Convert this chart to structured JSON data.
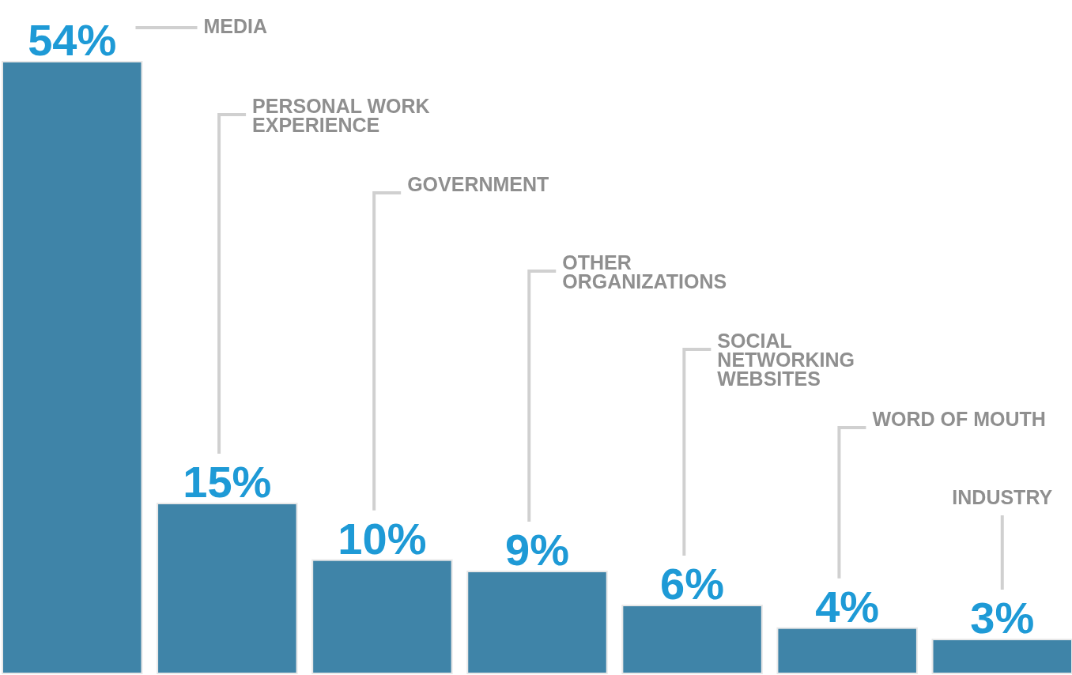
{
  "chart_data": {
    "type": "bar",
    "categories": [
      null,
      null,
      null,
      null,
      null,
      null,
      null
    ],
    "annotations": [
      "MEDIA",
      "PERSONAL WORK EXPERIENCE",
      "GOVERNMENT",
      "OTHER ORGANIZATIONS",
      "SOCIAL NETWORKING WEBSITES",
      "WORD OF MOUTH",
      "INDUSTRY"
    ],
    "values": [
      54,
      15,
      10,
      9,
      6,
      4,
      3
    ],
    "value_labels": [
      "54%",
      "15%",
      "10%",
      "9%",
      "6%",
      "4%",
      "3%"
    ],
    "color": "#3f84a8"
  }
}
